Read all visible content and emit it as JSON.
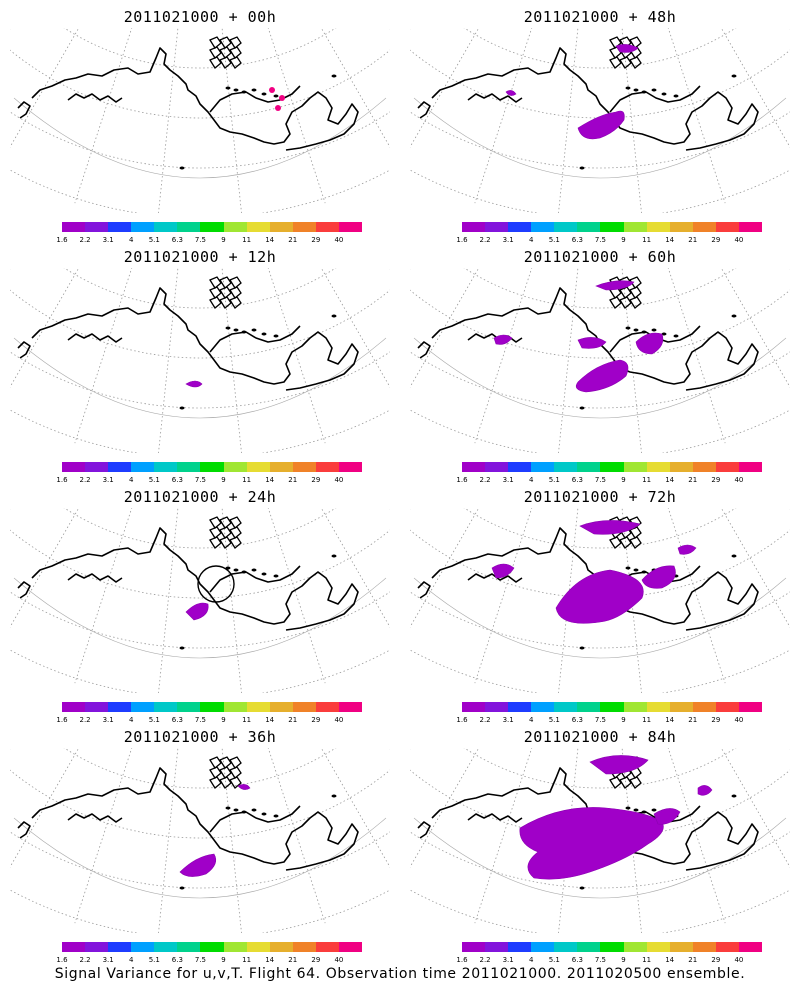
{
  "panels": [
    {
      "title": "2011021000 + 00h"
    },
    {
      "title": "2011021000 + 48h"
    },
    {
      "title": "2011021000 + 12h"
    },
    {
      "title": "2011021000 + 60h"
    },
    {
      "title": "2011021000 + 24h"
    },
    {
      "title": "2011021000 + 72h"
    },
    {
      "title": "2011021000 + 36h"
    },
    {
      "title": "2011021000 + 84h"
    }
  ],
  "colorbar": {
    "ticks": [
      "1.6",
      "2.2",
      "3.1",
      "4",
      "5.1",
      "6.3",
      "7.5",
      "9",
      "11",
      "14",
      "21",
      "29",
      "40"
    ],
    "colors": [
      "#a000c8",
      "#8214dc",
      "#1e3cff",
      "#00a0ff",
      "#00c8c8",
      "#00d28c",
      "#00dc00",
      "#a0e632",
      "#e6dc32",
      "#e6af2d",
      "#f08228",
      "#fa3c3c",
      "#f00082"
    ]
  },
  "footer": "Signal Variance for u,v,T. Flight 64. Observation time 2011021000. 2011020500 ensemble."
}
